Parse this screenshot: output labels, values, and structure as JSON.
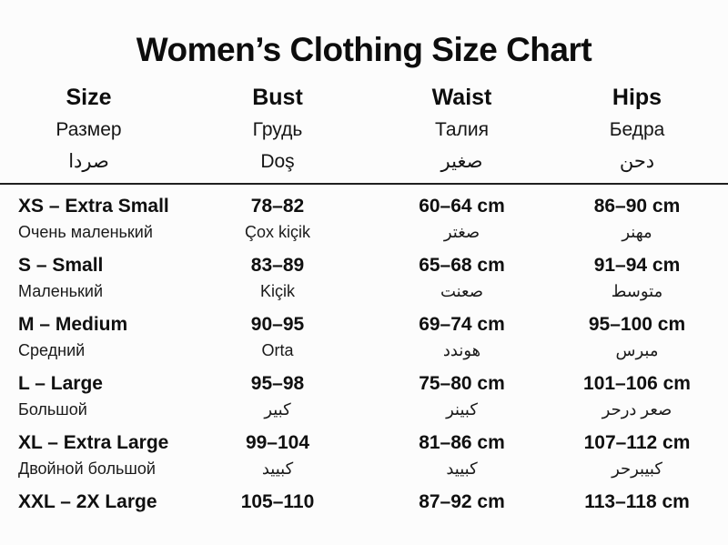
{
  "title": "Women’s Clothing Size Chart",
  "columns": [
    {
      "en": "Size",
      "ru": "Размер",
      "ar": "صردا"
    },
    {
      "en": "Bust",
      "ru": "Грудь",
      "ar": "Doş"
    },
    {
      "en": "Waist",
      "ru": "Талия",
      "ar": "صغير"
    },
    {
      "en": "Hips",
      "ru": "Бедра",
      "ar": "دحن"
    }
  ],
  "rows": [
    {
      "size": "XS – Extra Small",
      "size_sub": "Очень маленький",
      "bust": "78–82",
      "bust_sub": "Çox kiçik",
      "waist": "60–64 cm",
      "waist_sub": "صغتر",
      "hips": "86–90 cm",
      "hips_sub": "مهنر"
    },
    {
      "size": "S – Small",
      "size_sub": "Маленький",
      "bust": "83–89",
      "bust_sub": "Kiçik",
      "waist": "65–68 cm",
      "waist_sub": "صعنت",
      "hips": "91–94 cm",
      "hips_sub": "متوسط"
    },
    {
      "size": "M – Medium",
      "size_sub": "Средний",
      "bust": "90–95",
      "bust_sub": "Orta",
      "waist": "69–74 cm",
      "waist_sub": "هوندد",
      "hips": "95–100 cm",
      "hips_sub": "مبرس"
    },
    {
      "size": "L – Large",
      "size_sub": "Большой",
      "bust": "95–98",
      "bust_sub": "كبير",
      "waist": "75–80 cm",
      "waist_sub": "كبينر",
      "hips": "101–106 cm",
      "hips_sub": "صعر درحر"
    },
    {
      "size": "XL – Extra Large",
      "size_sub": "Двойной большой",
      "bust": "99–104",
      "bust_sub": "كبييد",
      "waist": "81–86 cm",
      "waist_sub": "كبييد",
      "hips": "107–112 cm",
      "hips_sub": "كبيبرحر"
    },
    {
      "size": "XXL – 2X Large",
      "bust": "105–110",
      "waist": "87–92 cm",
      "hips": "113–118 cm"
    }
  ],
  "colors": {
    "background": "#fcfcfc",
    "text": "#101010",
    "divider": "#1f1f1f"
  }
}
